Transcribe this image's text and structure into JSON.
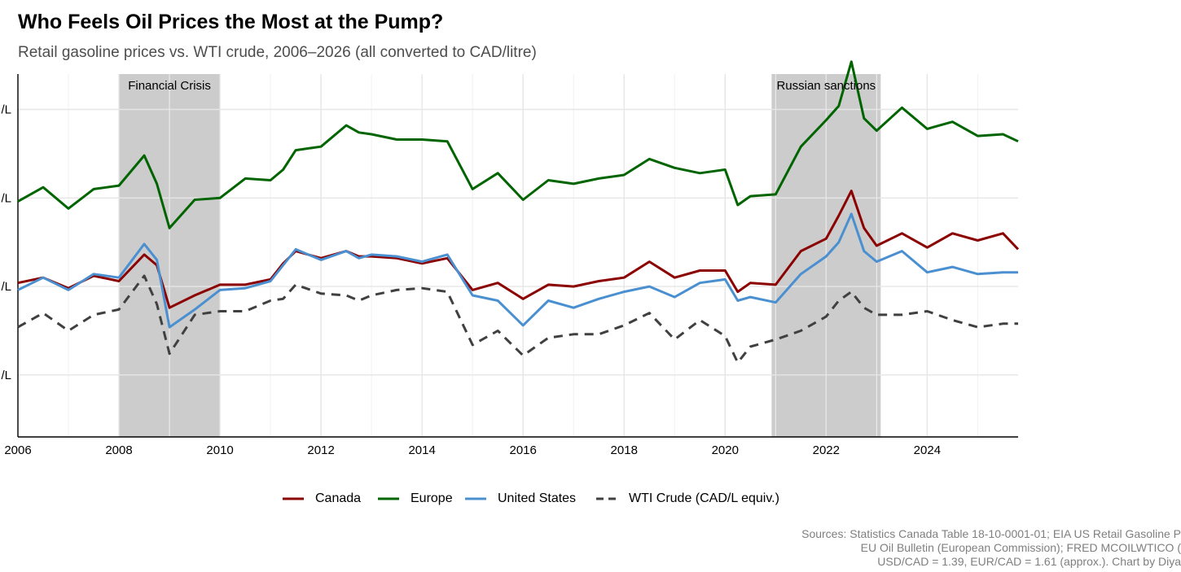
{
  "title": "Who Feels Oil Prices the Most at the Pump?",
  "subtitle": "Retail gasoline prices vs. WTI crude, 2006–2026 (all converted to CAD/litre)",
  "caption": [
    "Sources: Statistics Canada Table 18-10-0001-01; EIA US Retail Gasoline P",
    "EU Oil Bulletin (European Commission); FRED MCOILWTICO (",
    "USD/CAD = 1.39, EUR/CAD = 1.61 (approx.). Chart by Diya"
  ],
  "chart_data": {
    "type": "line",
    "xlim": [
      2006,
      2025.8
    ],
    "ylim": [
      0.15,
      2.2
    ],
    "x_ticks": [
      2006,
      2008,
      2010,
      2012,
      2014,
      2016,
      2018,
      2020,
      2022,
      2024
    ],
    "x_tick_labels": [
      "2006",
      "2008",
      "2010",
      "2012",
      "2014",
      "2016",
      "2018",
      "2020",
      "2022",
      "2024"
    ],
    "y_ticks": [
      0.5,
      1.0,
      1.5,
      2.0
    ],
    "y_tick_labels": [
      "/L",
      "/L",
      "/L",
      "/L"
    ],
    "grid": true,
    "legend_position": "bottom",
    "shaded_regions": [
      {
        "label": "Financial Crisis",
        "start": 2008.0,
        "end": 2010.0,
        "color": "#cccccc"
      },
      {
        "label": "Russian sanctions",
        "start": 2020.92,
        "end": 2023.08,
        "color": "#cccccc"
      }
    ],
    "x": [
      2006.0,
      2006.5,
      2007.0,
      2007.5,
      2008.0,
      2008.5,
      2008.75,
      2009.0,
      2009.5,
      2010.0,
      2010.5,
      2011.0,
      2011.25,
      2011.5,
      2012.0,
      2012.5,
      2012.75,
      2013.0,
      2013.5,
      2014.0,
      2014.5,
      2015.0,
      2015.5,
      2016.0,
      2016.5,
      2017.0,
      2017.5,
      2018.0,
      2018.5,
      2019.0,
      2019.5,
      2020.0,
      2020.25,
      2020.5,
      2021.0,
      2021.5,
      2022.0,
      2022.25,
      2022.5,
      2022.75,
      2023.0,
      2023.5,
      2024.0,
      2024.5,
      2025.0,
      2025.5,
      2025.8
    ],
    "series": [
      {
        "name": "Canada",
        "color": "#8b0000",
        "dash": "solid",
        "values": [
          1.02,
          1.05,
          0.99,
          1.06,
          1.03,
          1.18,
          1.12,
          0.88,
          0.95,
          1.01,
          1.01,
          1.04,
          1.13,
          1.2,
          1.16,
          1.2,
          1.17,
          1.17,
          1.16,
          1.13,
          1.16,
          0.98,
          1.02,
          0.93,
          1.01,
          1.0,
          1.03,
          1.05,
          1.14,
          1.05,
          1.09,
          1.09,
          0.97,
          1.02,
          1.01,
          1.2,
          1.27,
          1.4,
          1.54,
          1.33,
          1.23,
          1.3,
          1.22,
          1.3,
          1.26,
          1.3,
          1.21
        ]
      },
      {
        "name": "Europe",
        "color": "#006400",
        "dash": "solid",
        "values": [
          1.48,
          1.56,
          1.44,
          1.55,
          1.57,
          1.74,
          1.58,
          1.33,
          1.49,
          1.5,
          1.61,
          1.6,
          1.66,
          1.77,
          1.79,
          1.91,
          1.87,
          1.86,
          1.83,
          1.83,
          1.82,
          1.55,
          1.64,
          1.49,
          1.6,
          1.58,
          1.61,
          1.63,
          1.72,
          1.67,
          1.64,
          1.66,
          1.46,
          1.51,
          1.52,
          1.79,
          1.94,
          2.02,
          2.27,
          1.95,
          1.88,
          2.01,
          1.89,
          1.93,
          1.85,
          1.86,
          1.82
        ]
      },
      {
        "name": "United States",
        "color": "#4a90d0",
        "dash": "solid",
        "values": [
          0.98,
          1.05,
          0.98,
          1.07,
          1.05,
          1.24,
          1.15,
          0.77,
          0.87,
          0.98,
          0.99,
          1.03,
          1.12,
          1.21,
          1.15,
          1.2,
          1.16,
          1.18,
          1.17,
          1.14,
          1.18,
          0.95,
          0.92,
          0.78,
          0.92,
          0.88,
          0.93,
          0.97,
          1.0,
          0.94,
          1.02,
          1.04,
          0.92,
          0.94,
          0.91,
          1.07,
          1.17,
          1.25,
          1.41,
          1.2,
          1.14,
          1.2,
          1.08,
          1.11,
          1.07,
          1.08,
          1.08
        ]
      },
      {
        "name": "WTI Crude (CAD/L equiv.)",
        "color": "#404040",
        "dash": "dashed",
        "values": [
          0.77,
          0.85,
          0.75,
          0.84,
          0.87,
          1.06,
          0.9,
          0.62,
          0.84,
          0.86,
          0.86,
          0.92,
          0.93,
          1.01,
          0.96,
          0.95,
          0.92,
          0.95,
          0.98,
          0.99,
          0.97,
          0.67,
          0.75,
          0.61,
          0.71,
          0.73,
          0.73,
          0.78,
          0.85,
          0.7,
          0.81,
          0.72,
          0.57,
          0.66,
          0.7,
          0.75,
          0.83,
          0.92,
          0.97,
          0.88,
          0.84,
          0.84,
          0.86,
          0.81,
          0.77,
          0.79,
          0.79
        ]
      }
    ]
  }
}
